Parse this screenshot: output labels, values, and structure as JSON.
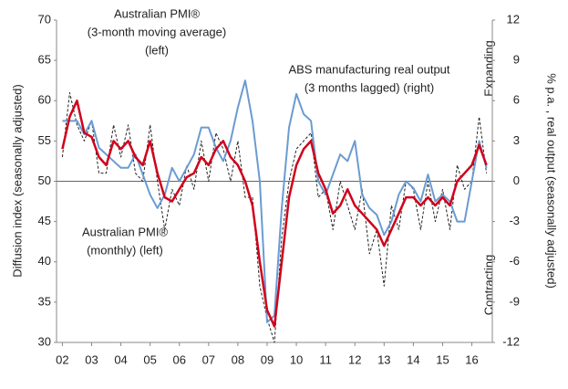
{
  "chart_data": {
    "type": "line",
    "y_label": "Diffusion index (seasonally adjusted)",
    "y2_label": "% p.a. , real output (seasonally adjusted)",
    "annotations": {
      "red": [
        "Australian PMI®",
        "(3-month moving average)",
        "(left)"
      ],
      "blue": [
        "ABS manufacturing real output",
        "(3 months lagged) (right)"
      ],
      "black": [
        "Australian PMI®",
        "(monthly) (left)"
      ],
      "expanding": "Expanding",
      "contracting": "Contracting"
    },
    "x": [
      2002.0,
      2002.25,
      2002.5,
      2002.75,
      2003.0,
      2003.25,
      2003.5,
      2003.75,
      2004.0,
      2004.25,
      2004.5,
      2004.75,
      2005.0,
      2005.25,
      2005.5,
      2005.75,
      2006.0,
      2006.25,
      2006.5,
      2006.75,
      2007.0,
      2007.25,
      2007.5,
      2007.75,
      2008.0,
      2008.25,
      2008.5,
      2008.75,
      2009.0,
      2009.25,
      2009.5,
      2009.75,
      2010.0,
      2010.25,
      2010.5,
      2010.75,
      2011.0,
      2011.25,
      2011.5,
      2011.75,
      2012.0,
      2012.25,
      2012.5,
      2012.75,
      2013.0,
      2013.25,
      2013.5,
      2013.75,
      2014.0,
      2014.25,
      2014.5,
      2014.75,
      2015.0,
      2015.25,
      2015.5,
      2015.75,
      2016.0,
      2016.25,
      2016.5
    ],
    "xlim": [
      2001.8,
      2016.7
    ],
    "xticks": [
      {
        "value": 2002,
        "label": "02"
      },
      {
        "value": 2003,
        "label": "03"
      },
      {
        "value": 2004,
        "label": "04"
      },
      {
        "value": 2005,
        "label": "05"
      },
      {
        "value": 2006,
        "label": "06"
      },
      {
        "value": 2007,
        "label": "07"
      },
      {
        "value": 2008,
        "label": "08"
      },
      {
        "value": 2009,
        "label": "09"
      },
      {
        "value": 2010,
        "label": "10"
      },
      {
        "value": 2011,
        "label": "11"
      },
      {
        "value": 2012,
        "label": "12"
      },
      {
        "value": 2013,
        "label": "13"
      },
      {
        "value": 2014,
        "label": "14"
      },
      {
        "value": 2015,
        "label": "15"
      },
      {
        "value": 2016,
        "label": "16"
      }
    ],
    "ylim": [
      30,
      70
    ],
    "yticks": [
      30,
      35,
      40,
      45,
      50,
      55,
      60,
      65,
      70
    ],
    "y2lim": [
      -12,
      12
    ],
    "y2ticks": [
      -12,
      -9,
      -6,
      -3,
      0,
      3,
      6,
      9,
      12
    ],
    "zero_line": 50,
    "series": [
      {
        "name": "Australian PMI® (monthly) (left)",
        "color": "#222222",
        "dashed": true,
        "width": 1,
        "values": [
          53,
          61,
          57,
          55,
          57.5,
          51,
          51,
          57,
          53,
          57,
          51,
          50,
          57,
          50,
          44,
          49,
          47,
          52,
          49,
          55,
          50,
          56,
          54,
          50,
          55,
          48,
          48,
          37,
          33,
          30,
          43,
          50,
          54,
          55,
          56,
          48,
          49,
          44,
          50,
          47,
          44,
          49,
          41,
          44,
          37,
          47,
          44,
          50,
          49,
          44,
          50,
          45,
          49,
          44,
          52,
          49,
          50,
          58,
          51
        ]
      },
      {
        "name": "ABS manufacturing real output (3 months lagged) (right)",
        "color": "#6a9bd1",
        "axis": "y2",
        "width": 2,
        "values": [
          4.5,
          4.5,
          4.5,
          3.5,
          4.5,
          2.5,
          2,
          1.5,
          1,
          1,
          2,
          0.5,
          -1,
          -2,
          -1,
          1,
          0,
          1,
          2,
          4,
          4,
          2.5,
          1.5,
          3,
          5.5,
          7.5,
          4.5,
          0,
          -10.5,
          -10,
          -2,
          4,
          6.5,
          5,
          4.5,
          0,
          -1,
          0.5,
          2,
          1.5,
          3,
          -1,
          -2,
          -2.5,
          -4,
          -3,
          -1,
          0,
          -0.5,
          -1.5,
          0.5,
          -1.5,
          -1,
          -1.5,
          -3,
          -3,
          0,
          3,
          1
        ]
      },
      {
        "name": "Australian PMI® (3-month moving average) (left)",
        "color": "#d0021b",
        "width": 2.5,
        "values": [
          54,
          58,
          60,
          56,
          55.5,
          53,
          52,
          55,
          54,
          55,
          53,
          52,
          55,
          51,
          48,
          47.5,
          49,
          50.5,
          51,
          53,
          52,
          54,
          55,
          53,
          52,
          50,
          47,
          40,
          34,
          32,
          40,
          48,
          52,
          54,
          55,
          51,
          49,
          46,
          47,
          49,
          47,
          46,
          45,
          44,
          42,
          44,
          46,
          48,
          48,
          47,
          48,
          47,
          48,
          47,
          50,
          51,
          52,
          54.5,
          52
        ]
      }
    ]
  }
}
